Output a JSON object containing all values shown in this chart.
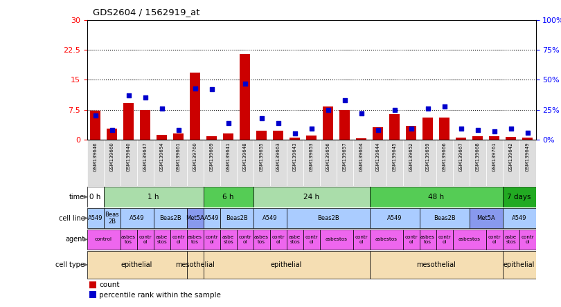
{
  "title": "GDS2604 / 1562919_at",
  "samples": [
    "GSM139646",
    "GSM139660",
    "GSM139640",
    "GSM139647",
    "GSM139654",
    "GSM139661",
    "GSM139760",
    "GSM139669",
    "GSM139641",
    "GSM139648",
    "GSM139655",
    "GSM139663",
    "GSM139643",
    "GSM139653",
    "GSM139656",
    "GSM139657",
    "GSM139664",
    "GSM139644",
    "GSM139645",
    "GSM139652",
    "GSM139659",
    "GSM139666",
    "GSM139667",
    "GSM139668",
    "GSM139761",
    "GSM139642",
    "GSM139649"
  ],
  "counts": [
    7.2,
    2.8,
    9.2,
    7.5,
    1.2,
    1.5,
    16.8,
    0.8,
    1.5,
    21.5,
    2.3,
    2.2,
    0.5,
    1.0,
    8.3,
    7.5,
    0.3,
    3.2,
    6.5,
    3.5,
    5.5,
    5.5,
    0.5,
    0.8,
    0.9,
    0.7,
    0.5
  ],
  "percentiles": [
    20,
    8,
    37,
    35,
    26,
    8,
    43,
    42,
    14,
    47,
    18,
    14,
    5,
    9,
    25,
    33,
    22,
    8,
    25,
    9,
    26,
    28,
    9,
    8,
    7,
    9,
    6
  ],
  "ylim_left": [
    0,
    30
  ],
  "ylim_right": [
    0,
    100
  ],
  "yticks_left": [
    0,
    7.5,
    15,
    22.5,
    30
  ],
  "ytick_labels_left": [
    "0",
    "7.5",
    "15",
    "22.5",
    "30"
  ],
  "yticks_right": [
    0,
    25,
    50,
    75,
    100
  ],
  "ytick_labels_right": [
    "0%",
    "25%",
    "50%",
    "75%",
    "100%"
  ],
  "bar_color": "#cc0000",
  "dot_color": "#0000cc",
  "time_row": {
    "label": "time",
    "segments": [
      {
        "text": "0 h",
        "start": 0,
        "end": 1,
        "color": "#ffffff"
      },
      {
        "text": "1 h",
        "start": 1,
        "end": 7,
        "color": "#aaddaa"
      },
      {
        "text": "6 h",
        "start": 7,
        "end": 10,
        "color": "#55cc55"
      },
      {
        "text": "24 h",
        "start": 10,
        "end": 17,
        "color": "#aaddaa"
      },
      {
        "text": "48 h",
        "start": 17,
        "end": 25,
        "color": "#55cc55"
      },
      {
        "text": "7 days",
        "start": 25,
        "end": 27,
        "color": "#22aa22"
      }
    ]
  },
  "cell_line_row": {
    "label": "cell line",
    "segments": [
      {
        "text": "A549",
        "start": 0,
        "end": 1,
        "color": "#aaccff"
      },
      {
        "text": "Beas\n2B",
        "start": 1,
        "end": 2,
        "color": "#aaccff"
      },
      {
        "text": "A549",
        "start": 2,
        "end": 4,
        "color": "#aaccff"
      },
      {
        "text": "Beas2B",
        "start": 4,
        "end": 6,
        "color": "#aaccff"
      },
      {
        "text": "Met5A",
        "start": 6,
        "end": 7,
        "color": "#8899ee"
      },
      {
        "text": "A549",
        "start": 7,
        "end": 8,
        "color": "#aaccff"
      },
      {
        "text": "Beas2B",
        "start": 8,
        "end": 10,
        "color": "#aaccff"
      },
      {
        "text": "A549",
        "start": 10,
        "end": 12,
        "color": "#aaccff"
      },
      {
        "text": "Beas2B",
        "start": 12,
        "end": 17,
        "color": "#aaccff"
      },
      {
        "text": "A549",
        "start": 17,
        "end": 20,
        "color": "#aaccff"
      },
      {
        "text": "Beas2B",
        "start": 20,
        "end": 23,
        "color": "#aaccff"
      },
      {
        "text": "Met5A",
        "start": 23,
        "end": 25,
        "color": "#8899ee"
      },
      {
        "text": "A549",
        "start": 25,
        "end": 27,
        "color": "#aaccff"
      }
    ]
  },
  "agent_row": {
    "label": "agent",
    "segments": [
      {
        "text": "control",
        "start": 0,
        "end": 2,
        "color": "#ee66ee"
      },
      {
        "text": "asbes\ntos",
        "start": 2,
        "end": 3,
        "color": "#ee66ee"
      },
      {
        "text": "contr\nol",
        "start": 3,
        "end": 4,
        "color": "#ee66ee"
      },
      {
        "text": "asbe\nstos",
        "start": 4,
        "end": 5,
        "color": "#ee66ee"
      },
      {
        "text": "contr\nol",
        "start": 5,
        "end": 6,
        "color": "#ee66ee"
      },
      {
        "text": "asbes\ntos",
        "start": 6,
        "end": 7,
        "color": "#ee66ee"
      },
      {
        "text": "contr\nol",
        "start": 7,
        "end": 8,
        "color": "#ee66ee"
      },
      {
        "text": "asbe\nstos",
        "start": 8,
        "end": 9,
        "color": "#ee66ee"
      },
      {
        "text": "contr\nol",
        "start": 9,
        "end": 10,
        "color": "#ee66ee"
      },
      {
        "text": "asbes\ntos",
        "start": 10,
        "end": 11,
        "color": "#ee66ee"
      },
      {
        "text": "contr\nol",
        "start": 11,
        "end": 12,
        "color": "#ee66ee"
      },
      {
        "text": "asbe\nstos",
        "start": 12,
        "end": 13,
        "color": "#ee66ee"
      },
      {
        "text": "contr\nol",
        "start": 13,
        "end": 14,
        "color": "#ee66ee"
      },
      {
        "text": "asbestos",
        "start": 14,
        "end": 16,
        "color": "#ee66ee"
      },
      {
        "text": "contr\nol",
        "start": 16,
        "end": 17,
        "color": "#ee66ee"
      },
      {
        "text": "asbestos",
        "start": 17,
        "end": 19,
        "color": "#ee66ee"
      },
      {
        "text": "contr\nol",
        "start": 19,
        "end": 20,
        "color": "#ee66ee"
      },
      {
        "text": "asbes\ntos",
        "start": 20,
        "end": 21,
        "color": "#ee66ee"
      },
      {
        "text": "contr\nol",
        "start": 21,
        "end": 22,
        "color": "#ee66ee"
      },
      {
        "text": "asbestos",
        "start": 22,
        "end": 24,
        "color": "#ee66ee"
      },
      {
        "text": "contr\nol",
        "start": 24,
        "end": 25,
        "color": "#ee66ee"
      },
      {
        "text": "asbe\nstos",
        "start": 25,
        "end": 26,
        "color": "#ee66ee"
      },
      {
        "text": "contr\nol",
        "start": 26,
        "end": 27,
        "color": "#ee66ee"
      }
    ]
  },
  "cell_type_row": {
    "label": "cell type",
    "segments": [
      {
        "text": "epithelial",
        "start": 0,
        "end": 6,
        "color": "#f5deb3"
      },
      {
        "text": "mesothelial",
        "start": 6,
        "end": 7,
        "color": "#f5deb3"
      },
      {
        "text": "epithelial",
        "start": 7,
        "end": 17,
        "color": "#f5deb3"
      },
      {
        "text": "mesothelial",
        "start": 17,
        "end": 25,
        "color": "#f5deb3"
      },
      {
        "text": "epithelial",
        "start": 25,
        "end": 27,
        "color": "#f5deb3"
      }
    ]
  },
  "row_labels": [
    "time",
    "cell line",
    "agent",
    "cell type"
  ],
  "legend_items": [
    {
      "color": "#cc0000",
      "label": "count"
    },
    {
      "color": "#0000cc",
      "label": "percentile rank within the sample"
    }
  ]
}
